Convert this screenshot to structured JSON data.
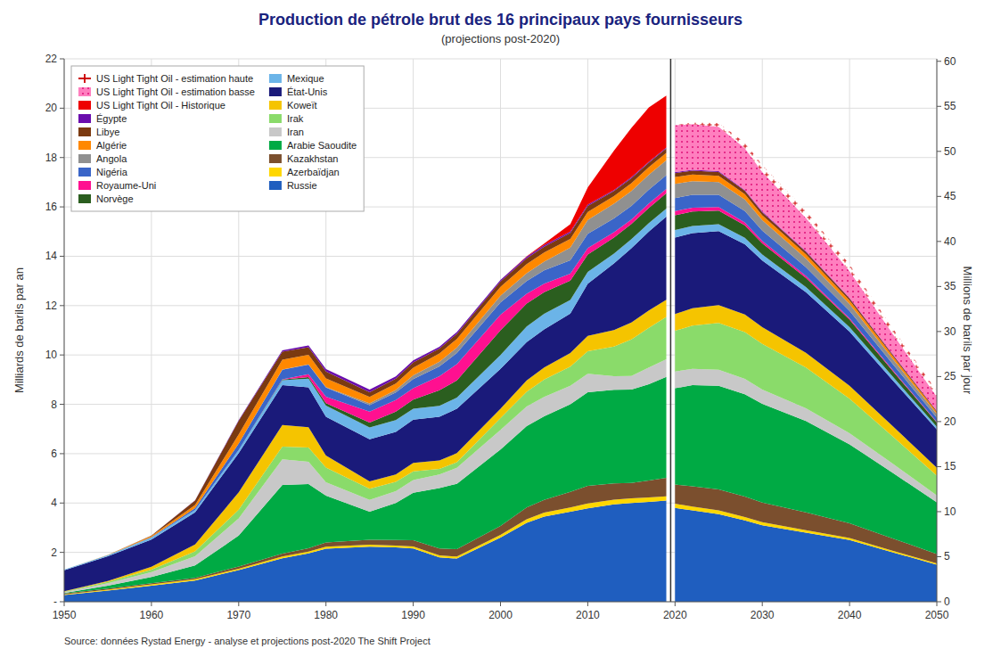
{
  "chart_data": {
    "type": "area",
    "stacked": true,
    "title": "Production de pétrole brut des 16 principaux pays fournisseurs",
    "subtitle": "(projections post-2020)",
    "ylabel": "Milliards de barils par an",
    "y2label": "Millions de barils par jour",
    "source": "Source: données Rystad Energy - analyse et projections post-2020  The Shift Project",
    "x": [
      1950,
      1955,
      1960,
      1965,
      1970,
      1975,
      1978,
      1980,
      1985,
      1988,
      1990,
      1993,
      1995,
      2000,
      2003,
      2005,
      2008,
      2010,
      2013,
      2015,
      2017,
      2019,
      2020,
      2022,
      2025,
      2028,
      2030,
      2035,
      2040,
      2045,
      2050
    ],
    "xlim": [
      1950,
      2050
    ],
    "xticks": [
      1950,
      1960,
      1970,
      1980,
      1990,
      2000,
      2010,
      2020,
      2030,
      2040,
      2050
    ],
    "ylim": [
      0,
      22
    ],
    "yticks": [
      {
        "value": 0,
        "label": "-"
      },
      2,
      4,
      6,
      8,
      10,
      12,
      14,
      16,
      18,
      20,
      22
    ],
    "y2lim": [
      0,
      60.2734
    ],
    "y2ticks": [
      0,
      5,
      10,
      15,
      20,
      25,
      30,
      35,
      40,
      45,
      50,
      55,
      60
    ],
    "grid": true,
    "legend": "upper left",
    "vlines": [
      2019.5
    ],
    "series": [
      {
        "name": "Russie",
        "color": "#1F5EBF",
        "values": [
          0.27,
          0.45,
          0.65,
          0.86,
          1.28,
          1.76,
          1.96,
          2.15,
          2.23,
          2.2,
          2.16,
          1.8,
          1.75,
          2.6,
          3.2,
          3.45,
          3.65,
          3.78,
          3.95,
          4.0,
          4.05,
          4.1,
          3.8,
          3.7,
          3.55,
          3.3,
          3.1,
          2.8,
          2.5,
          2.0,
          1.5
        ]
      },
      {
        "name": "Azerbaïdjan",
        "color": "#FFD700",
        "values": [
          0.03,
          0.04,
          0.05,
          0.05,
          0.06,
          0.07,
          0.07,
          0.08,
          0.08,
          0.08,
          0.08,
          0.08,
          0.08,
          0.11,
          0.14,
          0.16,
          0.17,
          0.2,
          0.19,
          0.19,
          0.18,
          0.17,
          0.17,
          0.16,
          0.15,
          0.13,
          0.12,
          0.1,
          0.08,
          0.06,
          0.05
        ]
      },
      {
        "name": "Kazakhstan",
        "color": "#7B4F2E",
        "values": [
          0.03,
          0.04,
          0.05,
          0.06,
          0.09,
          0.12,
          0.14,
          0.17,
          0.2,
          0.22,
          0.25,
          0.28,
          0.3,
          0.36,
          0.48,
          0.52,
          0.63,
          0.72,
          0.66,
          0.62,
          0.68,
          0.75,
          0.78,
          0.82,
          0.85,
          0.83,
          0.8,
          0.72,
          0.6,
          0.5,
          0.38
        ]
      },
      {
        "name": "Arabie Saoudite",
        "color": "#00AA44",
        "values": [
          0.02,
          0.12,
          0.25,
          0.5,
          1.25,
          2.78,
          2.6,
          1.9,
          1.14,
          1.5,
          1.93,
          2.45,
          2.65,
          3.1,
          3.3,
          3.38,
          3.55,
          3.79,
          3.79,
          3.79,
          3.9,
          4.09,
          3.9,
          4.1,
          4.2,
          4.15,
          4.0,
          3.7,
          3.2,
          2.65,
          2.1
        ]
      },
      {
        "name": "Iran",
        "color": "#C8C8C8",
        "values": [
          0.04,
          0.1,
          0.2,
          0.37,
          0.7,
          1.04,
          0.9,
          0.54,
          0.48,
          0.48,
          0.51,
          0.55,
          0.65,
          0.79,
          0.79,
          0.79,
          0.75,
          0.75,
          0.55,
          0.55,
          0.68,
          0.72,
          0.68,
          0.66,
          0.65,
          0.62,
          0.58,
          0.52,
          0.45,
          0.37,
          0.28
        ]
      },
      {
        "name": "Irak",
        "color": "#8ADB6A",
        "values": [
          0.02,
          0.05,
          0.1,
          0.2,
          0.35,
          0.52,
          0.58,
          0.6,
          0.45,
          0.38,
          0.35,
          0.22,
          0.22,
          0.48,
          0.6,
          0.7,
          0.78,
          0.91,
          1.2,
          1.48,
          1.61,
          1.71,
          1.65,
          1.75,
          1.9,
          1.9,
          1.85,
          1.65,
          1.4,
          1.1,
          0.8
        ]
      },
      {
        "name": "Koweït",
        "color": "#F5C400",
        "values": [
          0.01,
          0.04,
          0.12,
          0.28,
          0.7,
          0.87,
          0.82,
          0.48,
          0.3,
          0.3,
          0.35,
          0.35,
          0.37,
          0.38,
          0.46,
          0.49,
          0.55,
          0.62,
          0.67,
          0.69,
          0.7,
          0.7,
          0.68,
          0.7,
          0.72,
          0.71,
          0.68,
          0.6,
          0.52,
          0.42,
          0.32
        ]
      },
      {
        "name": "État-Unis",
        "color": "#1A1A7A",
        "values": [
          0.85,
          1.0,
          1.1,
          1.3,
          1.59,
          1.62,
          1.62,
          1.58,
          1.7,
          1.72,
          1.75,
          1.77,
          1.8,
          1.62,
          1.55,
          1.55,
          1.6,
          2.12,
          2.7,
          3.0,
          3.2,
          3.37,
          3.1,
          3.05,
          3.0,
          2.85,
          2.7,
          2.45,
          2.2,
          1.85,
          1.55
        ]
      },
      {
        "name": "Mexique",
        "color": "#6BB4E8",
        "values": [
          0.03,
          0.05,
          0.08,
          0.1,
          0.13,
          0.2,
          0.35,
          0.45,
          0.48,
          0.48,
          0.44,
          0.44,
          0.45,
          0.56,
          0.63,
          0.63,
          0.55,
          0.48,
          0.4,
          0.37,
          0.34,
          0.32,
          0.3,
          0.29,
          0.28,
          0.26,
          0.24,
          0.21,
          0.18,
          0.15,
          0.11
        ]
      },
      {
        "name": "Norvège",
        "color": "#2B5E1F",
        "values": [
          0.0,
          0.0,
          0.0,
          0.0,
          0.0,
          0.02,
          0.06,
          0.1,
          0.2,
          0.34,
          0.37,
          0.63,
          0.7,
          1.0,
          0.93,
          0.87,
          0.78,
          0.7,
          0.65,
          0.62,
          0.62,
          0.62,
          0.6,
          0.58,
          0.55,
          0.5,
          0.45,
          0.37,
          0.3,
          0.23,
          0.17
        ]
      },
      {
        "name": "Royaume-Uni",
        "color": "#FF1090",
        "values": [
          0.0,
          0.0,
          0.0,
          0.0,
          0.0,
          0.01,
          0.12,
          0.26,
          0.44,
          0.47,
          0.46,
          0.57,
          0.66,
          0.63,
          0.4,
          0.35,
          0.28,
          0.26,
          0.21,
          0.18,
          0.18,
          0.18,
          0.17,
          0.16,
          0.14,
          0.12,
          0.1,
          0.08,
          0.06,
          0.04,
          0.03
        ]
      },
      {
        "name": "Nigéria",
        "color": "#3A65C8",
        "values": [
          0.0,
          0.0,
          0.02,
          0.07,
          0.26,
          0.39,
          0.39,
          0.37,
          0.27,
          0.31,
          0.37,
          0.4,
          0.45,
          0.5,
          0.52,
          0.54,
          0.55,
          0.58,
          0.56,
          0.55,
          0.56,
          0.56,
          0.53,
          0.52,
          0.5,
          0.46,
          0.42,
          0.36,
          0.3,
          0.24,
          0.17
        ]
      },
      {
        "name": "Angola",
        "color": "#909090",
        "values": [
          0.0,
          0.0,
          0.0,
          0.0,
          0.0,
          0.01,
          0.01,
          0.02,
          0.07,
          0.1,
          0.16,
          0.19,
          0.22,
          0.27,
          0.31,
          0.35,
          0.51,
          0.56,
          0.6,
          0.6,
          0.6,
          0.6,
          0.57,
          0.55,
          0.52,
          0.47,
          0.42,
          0.35,
          0.28,
          0.21,
          0.14
        ]
      },
      {
        "name": "Algérie",
        "color": "#FF8800",
        "values": [
          0.0,
          0.01,
          0.04,
          0.13,
          0.37,
          0.4,
          0.39,
          0.35,
          0.26,
          0.26,
          0.3,
          0.33,
          0.35,
          0.36,
          0.37,
          0.37,
          0.35,
          0.33,
          0.31,
          0.32,
          0.31,
          0.3,
          0.28,
          0.27,
          0.25,
          0.22,
          0.2,
          0.17,
          0.14,
          0.11,
          0.08
        ]
      },
      {
        "name": "Libye",
        "color": "#7B3A10",
        "values": [
          0.0,
          0.0,
          0.02,
          0.18,
          0.55,
          0.32,
          0.3,
          0.28,
          0.19,
          0.2,
          0.22,
          0.2,
          0.21,
          0.22,
          0.24,
          0.24,
          0.25,
          0.24,
          0.2,
          0.2,
          0.18,
          0.18,
          0.16,
          0.16,
          0.15,
          0.13,
          0.12,
          0.1,
          0.08,
          0.06,
          0.04
        ]
      },
      {
        "name": "Égypte",
        "color": "#6A0DAD",
        "values": [
          0.0,
          0.0,
          0.0,
          0.01,
          0.03,
          0.06,
          0.08,
          0.1,
          0.11,
          0.09,
          0.08,
          0.07,
          0.07,
          0.06,
          0.06,
          0.06,
          0.05,
          0.05,
          0.04,
          0.04,
          0.04,
          0.04,
          0.04,
          0.035,
          0.035,
          0.03,
          0.03,
          0.025,
          0.02,
          0.015,
          0.01
        ]
      },
      {
        "name": "US Light Tight Oil - Historique",
        "color": "#EE0000",
        "values": [
          0.0,
          0.0,
          0.0,
          0.0,
          0.0,
          0.0,
          0.0,
          0.0,
          0.0,
          0.0,
          0.0,
          0.0,
          0.0,
          0.0,
          0.02,
          0.06,
          0.3,
          0.7,
          1.6,
          2.0,
          2.2,
          2.1,
          null,
          null,
          null,
          null,
          null,
          null,
          null,
          null,
          null
        ]
      },
      {
        "name": "US Light Tight Oil - estimation basse",
        "color": "#FF69B4",
        "marker": "dot",
        "values": [
          null,
          null,
          null,
          null,
          null,
          null,
          null,
          null,
          null,
          null,
          null,
          null,
          null,
          null,
          null,
          null,
          null,
          null,
          null,
          null,
          null,
          null,
          1.9,
          1.85,
          1.8,
          1.7,
          1.6,
          1.35,
          1.08,
          0.82,
          0.58
        ]
      },
      {
        "name": "US Light Tight Oil - estimation haute",
        "color": "#CC0000",
        "marker": "plus",
        "values": [
          null,
          null,
          null,
          null,
          null,
          null,
          null,
          null,
          null,
          null,
          null,
          null,
          null,
          null,
          null,
          null,
          null,
          null,
          null,
          null,
          null,
          null,
          0,
          0.07,
          0.15,
          0.22,
          0.28,
          0.3,
          0.27,
          0.23,
          0.22
        ]
      }
    ]
  }
}
